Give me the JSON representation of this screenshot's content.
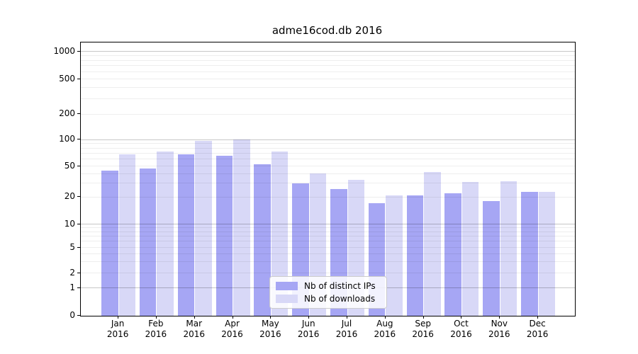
{
  "chart_data": {
    "type": "bar",
    "title": "adme16cod.db 2016",
    "categories": [
      "Jan",
      "Feb",
      "Mar",
      "Apr",
      "May",
      "Jun",
      "Jul",
      "Aug",
      "Sep",
      "Oct",
      "Nov",
      "Dec"
    ],
    "year_label": "2016",
    "series": [
      {
        "name": "Nb of distinct IPs",
        "color": "#a6a6f4",
        "values": [
          44,
          46,
          68,
          65,
          52,
          30,
          25,
          17,
          21,
          22,
          18,
          23
        ]
      },
      {
        "name": "Nb of downloads",
        "color": "#d8d8f7",
        "values": [
          68,
          73,
          97,
          100,
          73,
          40,
          33,
          21,
          42,
          31,
          32,
          23
        ]
      }
    ],
    "xlabel": "",
    "ylabel": "",
    "yscale": "symlog",
    "ylim": [
      0,
      1000
    ],
    "yticks": [
      0,
      1,
      2,
      5,
      10,
      20,
      50,
      100,
      200,
      500,
      1000
    ],
    "grid": "both",
    "legend_position": "lower-center",
    "colors": {
      "background": "#ffffff",
      "spine": "#000000",
      "major_grid": "rgba(0,0,0,0.22)",
      "minor_grid": "rgba(0,0,0,0.065)",
      "text": "#000000"
    }
  }
}
